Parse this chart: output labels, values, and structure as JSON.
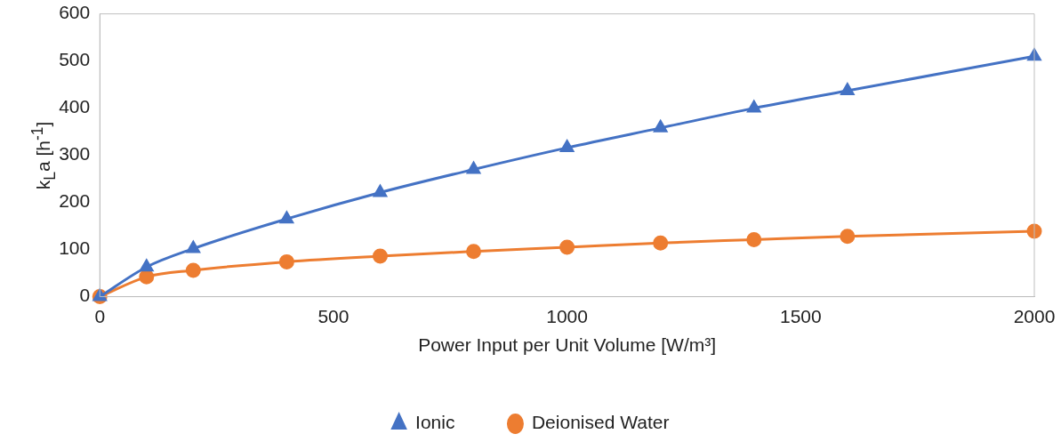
{
  "chart_data": {
    "type": "line",
    "xlabel": "Power Input per Unit Volume [W/m³]",
    "ylabel": "k$_{L}$a [h$^{-1}$]",
    "x": [
      0,
      100,
      200,
      400,
      600,
      800,
      1000,
      1200,
      1400,
      1600,
      2000
    ],
    "series": [
      {
        "name": "Ionic",
        "color": "#4472c4",
        "marker": "triangle",
        "values": [
          0,
          63,
          102,
          165,
          221,
          270,
          316,
          358,
          400,
          437,
          510
        ]
      },
      {
        "name": "Deionised Water",
        "color": "#ed7d31",
        "marker": "circle",
        "values": [
          0,
          42,
          56,
          74,
          86,
          96,
          105,
          114,
          121,
          128,
          139
        ]
      }
    ],
    "xlim": [
      0,
      2000
    ],
    "xticks": [
      0,
      500,
      1000,
      1500,
      2000
    ],
    "ylim": [
      0,
      600
    ],
    "yticks": [
      0,
      100,
      200,
      300,
      400,
      500,
      600
    ],
    "grid": false,
    "legend": "bottom",
    "line_style": "solid"
  }
}
